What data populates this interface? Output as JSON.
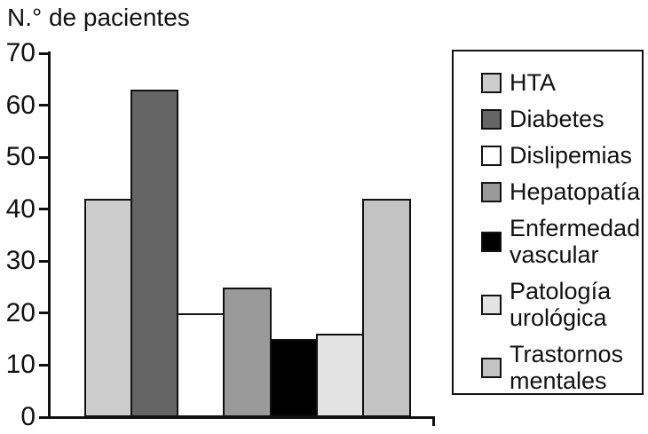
{
  "title": "N.° de pacientes",
  "colors": {
    "background": "#ffffff",
    "axis": "#111111",
    "bar_border": "#111111",
    "legend_border": "#111111"
  },
  "chart_data": {
    "type": "bar",
    "title": "N.° de pacientes",
    "xlabel": "",
    "ylabel": "N.° de pacientes",
    "ylim": [
      0,
      70
    ],
    "yticks": [
      0,
      10,
      20,
      30,
      40,
      50,
      60,
      70
    ],
    "grid": false,
    "legend_position": "right",
    "categories": [
      "HTA",
      "Diabetes",
      "Dislipemias",
      "Hepatopatía",
      "Enfermedad vascular",
      "Patología urológica",
      "Trastornos mentales"
    ],
    "values": [
      42,
      63,
      20,
      25,
      15,
      16,
      42
    ],
    "series": [
      {
        "name": "HTA",
        "value": 42,
        "color": "#cdcdcd"
      },
      {
        "name": "Diabetes",
        "value": 63,
        "color": "#656565"
      },
      {
        "name": "Dislipemias",
        "value": 20,
        "color": "#ffffff"
      },
      {
        "name": "Hepatopatía",
        "value": 25,
        "color": "#9a9a9a"
      },
      {
        "name": "Enfermedad vascular",
        "value": 15,
        "color": "#000000"
      },
      {
        "name": "Patología urológica",
        "value": 16,
        "color": "#e3e3e3"
      },
      {
        "name": "Trastornos mentales",
        "value": 42,
        "color": "#c3c3c3"
      }
    ]
  }
}
